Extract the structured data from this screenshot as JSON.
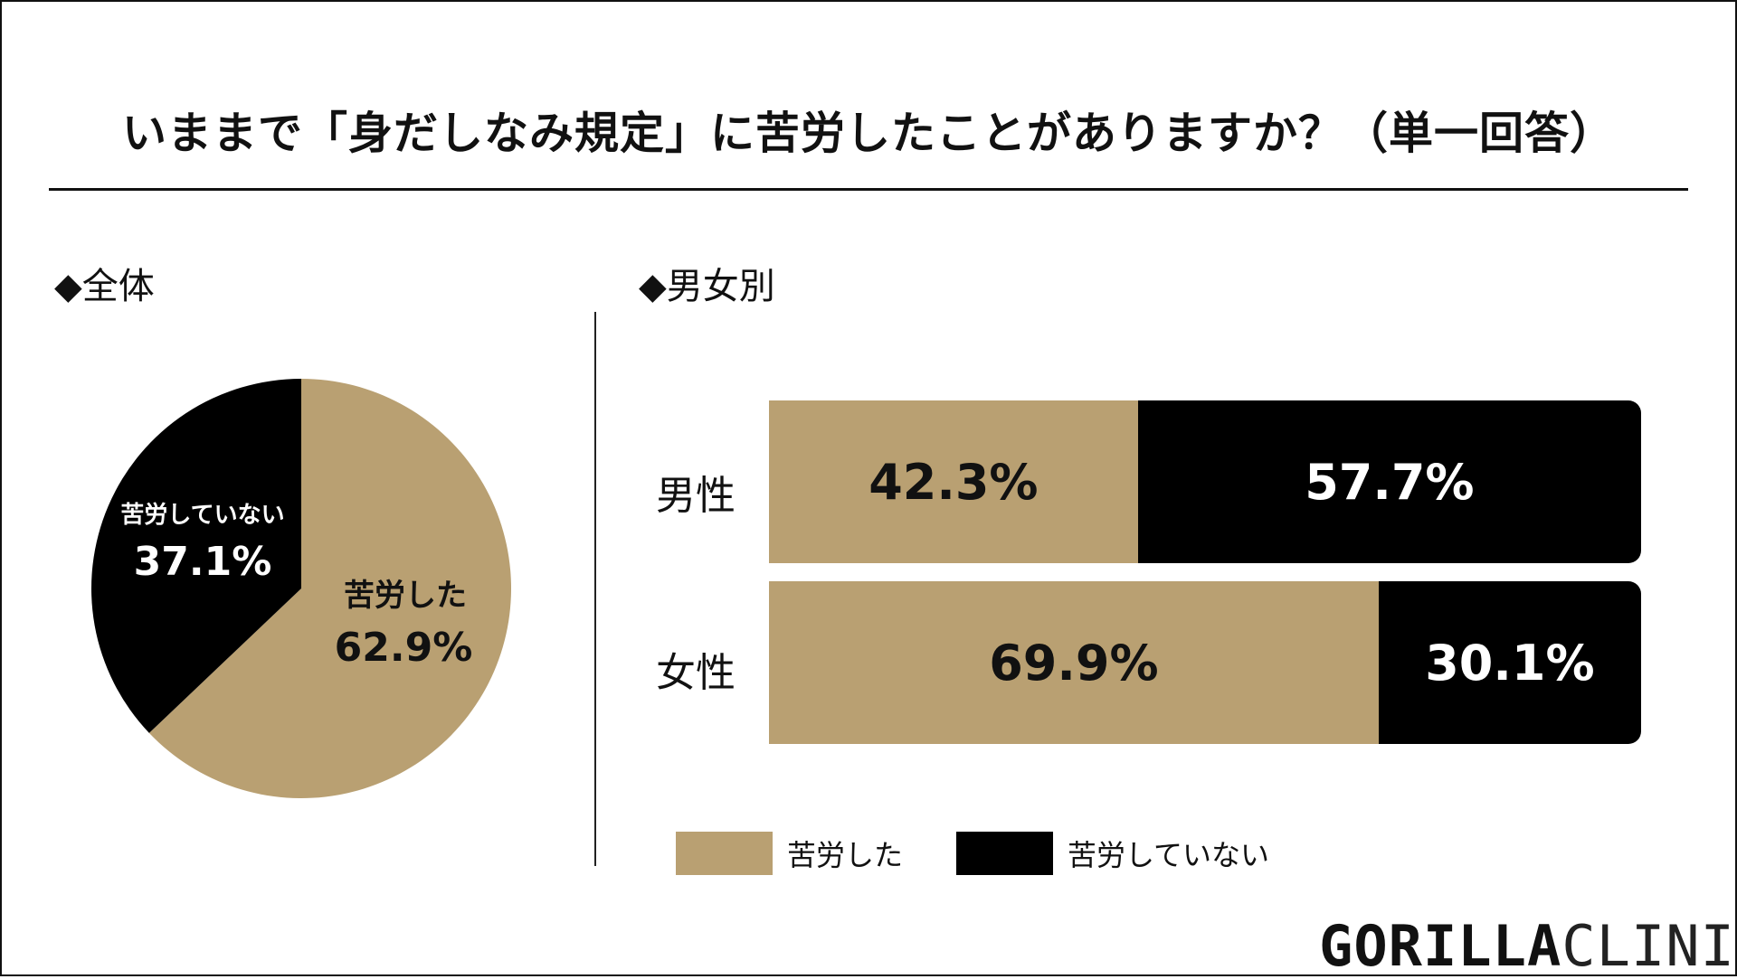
{
  "title": "いままで「身だしなみ規定」に苦労したことがありますか？（単一回答）",
  "sections": {
    "overall": "◆全体",
    "by_gender": "◆男女別"
  },
  "colors": {
    "did": "#b9a072",
    "did_not": "#000000"
  },
  "logo": {
    "bold": "GORILLA",
    "light": "CLINIC"
  },
  "chart_data": [
    {
      "type": "pie",
      "categories": [
        "苦労した",
        "苦労していない"
      ],
      "values": [
        62.9,
        37.1
      ],
      "labels": [
        {
          "name": "苦労した",
          "value": "62.9%"
        },
        {
          "name": "苦労していない",
          "value": "37.1%"
        }
      ]
    },
    {
      "type": "bar",
      "orientation": "horizontal-stacked",
      "categories": [
        "男性",
        "女性"
      ],
      "series": [
        {
          "name": "苦労した",
          "values": [
            42.3,
            69.9
          ],
          "labels": [
            "42.3%",
            "69.9%"
          ]
        },
        {
          "name": "苦労していない",
          "values": [
            57.7,
            30.1
          ],
          "labels": [
            "57.7%",
            "30.1%"
          ]
        }
      ],
      "legend": "bottom"
    }
  ]
}
